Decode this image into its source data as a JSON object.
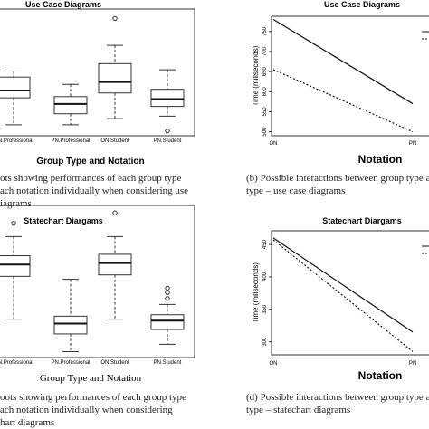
{
  "chart_data": [
    {
      "type": "box",
      "title": "Use Case Diagrams",
      "xlabel": "Group Type and Notation",
      "categories": [
        "ON.Professional",
        "PN.Professional",
        "ON.Student",
        "PN.Student"
      ],
      "ylim": [
        0,
        100
      ],
      "boxes": [
        {
          "min": 9,
          "q1": 31,
          "median": 37,
          "q3": 48,
          "max": 53,
          "outliers": []
        },
        {
          "min": 9,
          "q1": 18,
          "median": 26,
          "q3": 32,
          "max": 42,
          "outliers": []
        },
        {
          "min": 14,
          "q1": 35,
          "median": 44,
          "q3": 59,
          "max": 74,
          "outliers": [
            96
          ]
        },
        {
          "min": 16,
          "q1": 24,
          "median": 30,
          "q3": 38,
          "max": 54,
          "outliers": [
            4
          ]
        }
      ]
    },
    {
      "type": "line",
      "title": "Use Case Diagrams",
      "xlabel": "Notation",
      "ylabel": "Time (millseconds)",
      "categories": [
        "ON",
        "PN"
      ],
      "ylim": [
        490,
        788
      ],
      "yticks": [
        500,
        550,
        600,
        650,
        700,
        750
      ],
      "series": [
        {
          "values": [
            780,
            570
          ],
          "color": "#111",
          "dash": false
        },
        {
          "values": [
            655,
            500
          ],
          "color": "#111",
          "dash": true
        }
      ]
    },
    {
      "type": "box",
      "title": "Statechart Diargams",
      "xlabel": "Group Type and Notation",
      "categories": [
        "ON.Professional",
        "PN.Professional",
        "ON.Student",
        "PN.Student"
      ],
      "ylim": [
        0,
        100
      ],
      "boxes": [
        {
          "min": 26,
          "q1": 55,
          "median": 63,
          "q3": 69,
          "max": 82,
          "outliers": [
            91
          ]
        },
        {
          "min": 4,
          "q1": 16,
          "median": 23,
          "q3": 28,
          "max": 53,
          "outliers": []
        },
        {
          "min": 26,
          "q1": 56,
          "median": 64,
          "q3": 70,
          "max": 82,
          "outliers": [
            98
          ]
        },
        {
          "min": 9,
          "q1": 19,
          "median": 25,
          "q3": 29,
          "max": 36,
          "outliers": [
            40,
            44,
            47
          ]
        }
      ]
    },
    {
      "type": "line",
      "title": "Statechart Diargams",
      "xlabel": "Notation",
      "ylabel": "Time (millseconds)",
      "categories": [
        "ON",
        "PN"
      ],
      "ylim": [
        280,
        471
      ],
      "yticks": [
        300,
        350,
        400,
        450
      ],
      "series": [
        {
          "values": [
            460,
            315
          ],
          "color": "#111",
          "dash": false
        },
        {
          "values": [
            457,
            285
          ],
          "color": "#111",
          "dash": true
        }
      ]
    }
  ],
  "captions": [
    [
      "ots showing performances of each group type",
      "ach notation individually when considering use",
      "iagrams"
    ],
    [
      "(b) Possible interactions between group type a",
      "type – use case diagrams"
    ],
    [
      "oots showing performances of each group type",
      "ach notation individually when considering",
      "hart diagrams"
    ],
    [
      "(d) Possible interactions between group type a",
      "type – statechart diagrams"
    ]
  ]
}
